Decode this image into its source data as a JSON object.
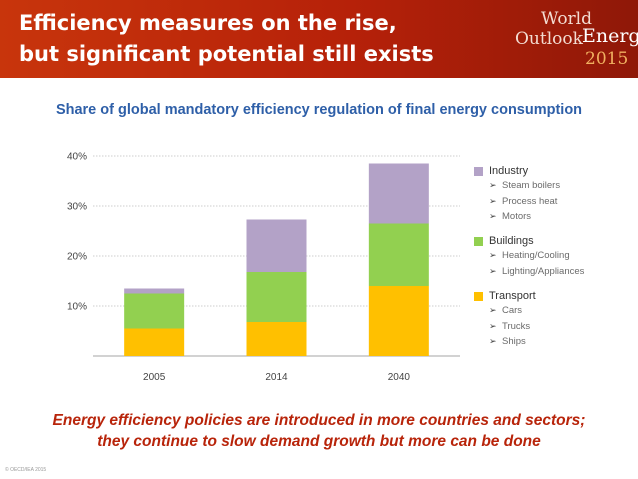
{
  "header": {
    "title_line1": "Efficiency measures on the rise,",
    "title_line2": "but significant potential still exists",
    "logo_line1": "World",
    "logo_line2": "Outlook",
    "logo_line3": "Energy",
    "logo_line4": "2015"
  },
  "chart_data": {
    "type": "bar",
    "stacked": true,
    "title": "Share of global mandatory efficiency regulation of final energy consumption",
    "categories": [
      "2005",
      "2014",
      "2040"
    ],
    "series": [
      {
        "name": "Transport",
        "color": "#ffc000",
        "values": [
          5.5,
          6.8,
          14.0
        ]
      },
      {
        "name": "Buildings",
        "color": "#92d050",
        "values": [
          7.0,
          10.0,
          12.5
        ]
      },
      {
        "name": "Industry",
        "color": "#b3a2c7",
        "values": [
          1.0,
          10.5,
          12.0
        ]
      }
    ],
    "ylim": [
      0,
      40
    ],
    "yticks": [
      10,
      20,
      30,
      40
    ],
    "ytick_labels": [
      "10%",
      "20%",
      "30%",
      "40%"
    ],
    "gridlines": true,
    "xlabel": "",
    "ylabel": "",
    "legend_position": "right"
  },
  "legend": [
    {
      "name": "Industry",
      "color": "#b3a2c7",
      "items": [
        "Steam boilers",
        "Process heat",
        "Motors"
      ]
    },
    {
      "name": "Buildings",
      "color": "#92d050",
      "items": [
        "Heating/Cooling",
        "Lighting/Appliances"
      ]
    },
    {
      "name": "Transport",
      "color": "#ffc000",
      "items": [
        "Cars",
        "Trucks",
        "Ships"
      ]
    }
  ],
  "legend_bullet": "➢",
  "caption": {
    "line1": "Energy efficiency policies are introduced in more countries and sectors;",
    "line2": "they continue to slow demand growth but more can be done"
  },
  "copyright": "© OECD/IEA 2015"
}
